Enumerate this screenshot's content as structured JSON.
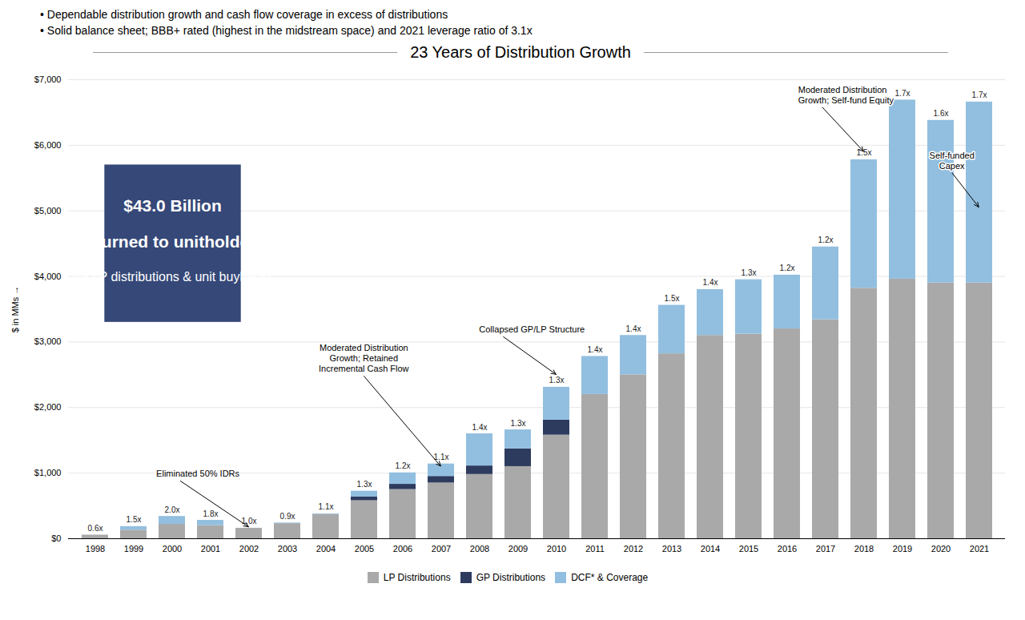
{
  "chart_data": {
    "type": "bar",
    "stacked": true,
    "title": "23 Years of Distribution Growth",
    "subtitle": [
      "• Dependable distribution growth and cash flow coverage in excess of distributions",
      "• Solid balance sheet; BBB+ rated (highest in the midstream space) and 2021 leverage ratio of 3.1x"
    ],
    "ylabel": "$ in MMs",
    "categories": [
      "1998",
      "1999",
      "2000",
      "2001",
      "2002",
      "2003",
      "2004",
      "2005",
      "2006",
      "2007",
      "2008",
      "2009",
      "2010",
      "2011",
      "2012",
      "2013",
      "2014",
      "2015",
      "2016",
      "2017",
      "2018",
      "2019",
      "2020",
      "2021"
    ],
    "series": [
      {
        "name": "LP Distributions",
        "color": "#a9a9a9",
        "values": [
          55,
          130,
          220,
          200,
          160,
          230,
          370,
          580,
          750,
          850,
          980,
          1100,
          1580,
          2200,
          2500,
          2820,
          3100,
          3120,
          3200,
          3340,
          3820,
          3960,
          3900,
          3900
        ]
      },
      {
        "name": "GP Distributions",
        "color": "#2d3b5e",
        "values": [
          0,
          0,
          0,
          0,
          0,
          0,
          0,
          55,
          80,
          100,
          130,
          270,
          230,
          0,
          0,
          0,
          0,
          0,
          0,
          0,
          0,
          0,
          0,
          0
        ]
      },
      {
        "name": "DCF* & Coverage",
        "color": "#92bfe0",
        "values": [
          0,
          55,
          120,
          80,
          0,
          10,
          10,
          90,
          175,
          190,
          490,
          290,
          500,
          580,
          600,
          740,
          700,
          830,
          820,
          1110,
          1960,
          2730,
          2480,
          2760
        ]
      }
    ],
    "bar_labels": [
      "0.6x",
      "1.5x",
      "2.0x",
      "1.8x",
      "1.0x",
      "0.9x",
      "1.1x",
      "1.3x",
      "1.2x",
      "1.1x",
      "1.4x",
      "1.3x",
      "1.3x",
      "1.4x",
      "1.4x",
      "1.5x",
      "1.4x",
      "1.3x",
      "1.2x",
      "1.2x",
      "1.5x",
      "1.7x",
      "1.6x",
      "1.7x"
    ],
    "ylim": [
      0,
      7000
    ],
    "yticks": [
      {
        "value": 0,
        "label": "$0"
      },
      {
        "value": 1000,
        "label": "$1,000"
      },
      {
        "value": 2000,
        "label": "$2,000"
      },
      {
        "value": 3000,
        "label": "$3,000"
      },
      {
        "value": 4000,
        "label": "$4,000"
      },
      {
        "value": 5000,
        "label": "$5,000"
      },
      {
        "value": 6000,
        "label": "$6,000"
      },
      {
        "value": 7000,
        "label": "$7,000"
      }
    ],
    "grid": true,
    "legend": "bottom",
    "annotations": [
      {
        "text": "Eliminated 50% IDRs",
        "x": "2002",
        "y": 175
      },
      {
        "text": "Moderated Distribution\nGrowth; Retained\nIncremental Cash Flow",
        "x": "2007",
        "y": 1100
      },
      {
        "text": "Collapsed GP/LP Structure",
        "x": "2010",
        "y": 2500
      },
      {
        "text": "Moderated Distribution\nGrowth; Self-fund Equity",
        "x": "2018",
        "y": 5900
      },
      {
        "text": "Self-funded\nCapex",
        "x": "2021",
        "y": 5050
      }
    ],
    "callout": {
      "lines": [
        "$43.0 Billion",
        "returned to unitholders",
        "via LP distributions & unit buybacks"
      ],
      "color": "#354878",
      "text_color": "#ffffff"
    }
  }
}
